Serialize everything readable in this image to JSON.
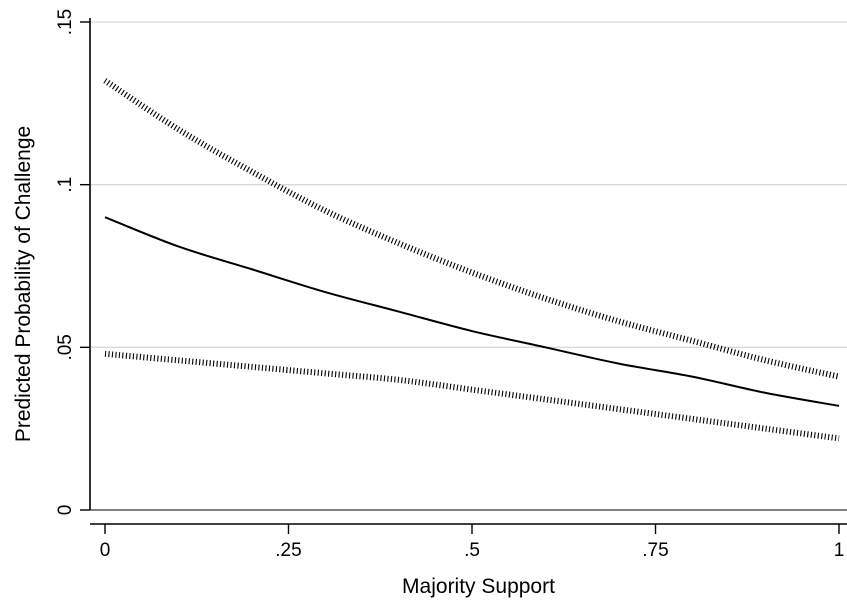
{
  "chart_data": {
    "type": "line",
    "title": "",
    "xlabel": "Majority Support",
    "ylabel": "Predicted Probability of Challenge",
    "xlim": [
      0,
      1
    ],
    "ylim": [
      0,
      0.15
    ],
    "x_ticks": [
      {
        "value": 0,
        "label": "0"
      },
      {
        "value": 0.25,
        "label": ".25"
      },
      {
        "value": 0.5,
        "label": ".5"
      },
      {
        "value": 0.75,
        "label": ".75"
      },
      {
        "value": 1,
        "label": "1"
      }
    ],
    "y_ticks": [
      {
        "value": 0,
        "label": "0"
      },
      {
        "value": 0.05,
        "label": ".05"
      },
      {
        "value": 0.1,
        "label": ".1"
      },
      {
        "value": 0.15,
        "label": ".15"
      }
    ],
    "grid": "horizontal",
    "legend": "none",
    "x": [
      0,
      0.1,
      0.2,
      0.3,
      0.4,
      0.5,
      0.6,
      0.7,
      0.8,
      0.9,
      1
    ],
    "series": [
      {
        "values": [
          0.09,
          0.081,
          0.074,
          0.067,
          0.061,
          0.055,
          0.05,
          0.045,
          0.041,
          0.036,
          0.032
        ],
        "style": "solid"
      },
      {
        "values": [
          0.132,
          0.117,
          0.104,
          0.092,
          0.082,
          0.073,
          0.065,
          0.058,
          0.052,
          0.046,
          0.041
        ],
        "style": "dotted"
      },
      {
        "values": [
          0.048,
          0.046,
          0.044,
          0.042,
          0.04,
          0.037,
          0.034,
          0.031,
          0.028,
          0.025,
          0.022
        ],
        "style": "dotted"
      }
    ],
    "colors": {
      "line": "#000000",
      "grid": "#d9d9d9",
      "axis": "#000000",
      "zero_line": "#555555"
    }
  }
}
